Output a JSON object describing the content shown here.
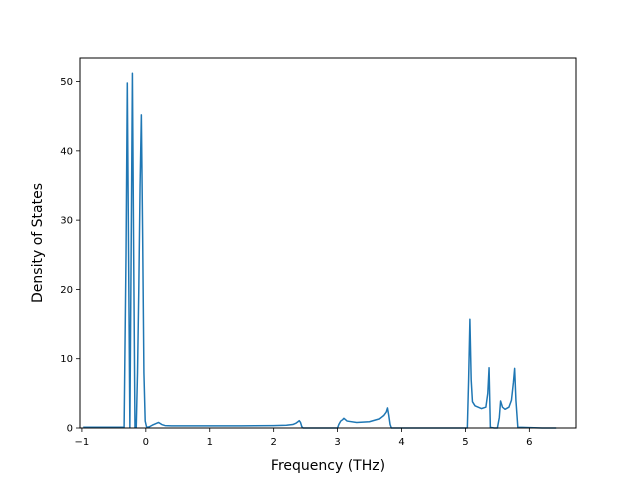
{
  "chart_data": {
    "type": "line",
    "title": "",
    "xlabel": "Frequency (THz)",
    "ylabel": "Density of States",
    "xlim": [
      -1.03,
      6.73
    ],
    "ylim": [
      0,
      53.4
    ],
    "x_ticks": [
      -1,
      0,
      1,
      2,
      3,
      4,
      5,
      6
    ],
    "y_ticks": [
      0,
      10,
      20,
      30,
      40,
      50
    ],
    "grid": false,
    "line_color": "#1f77b4",
    "series": [
      {
        "x": [
          -0.98,
          -0.5,
          -0.34,
          -0.31,
          -0.29,
          -0.27,
          -0.25,
          -0.23,
          -0.21,
          -0.19,
          -0.17,
          -0.15,
          -0.13,
          -0.11,
          -0.09,
          -0.07,
          -0.05,
          -0.03,
          -0.01,
          0.01,
          0.03,
          0.06,
          0.1,
          0.15,
          0.2,
          0.25,
          0.3,
          0.4,
          0.6,
          1.0,
          1.5,
          2.0,
          2.2,
          2.3,
          2.35,
          2.38,
          2.4,
          2.42,
          2.44,
          2.46,
          2.7,
          3.0,
          3.02,
          3.05,
          3.08,
          3.1,
          3.15,
          3.3,
          3.5,
          3.65,
          3.72,
          3.76,
          3.78,
          3.8,
          3.82,
          3.84,
          4.2,
          5.03,
          5.05,
          5.07,
          5.09,
          5.11,
          5.15,
          5.25,
          5.32,
          5.35,
          5.37,
          5.39,
          5.45,
          5.5,
          5.53,
          5.55,
          5.58,
          5.62,
          5.68,
          5.72,
          5.75,
          5.77,
          5.79,
          5.82,
          6.2,
          6.42
        ],
        "y": [
          0.1,
          0.1,
          0.1,
          25.0,
          49.8,
          25.0,
          0.1,
          25.0,
          51.2,
          25.0,
          0.1,
          0.1,
          8.0,
          20.0,
          35.0,
          45.2,
          28.0,
          8.0,
          1.0,
          0.2,
          0.1,
          0.2,
          0.4,
          0.6,
          0.8,
          0.5,
          0.35,
          0.3,
          0.3,
          0.3,
          0.3,
          0.35,
          0.4,
          0.5,
          0.7,
          0.9,
          1.05,
          0.8,
          0.2,
          0.0,
          0.0,
          0.0,
          0.5,
          1.0,
          1.2,
          1.4,
          1.0,
          0.8,
          0.9,
          1.3,
          1.8,
          2.3,
          2.9,
          1.8,
          0.5,
          0.0,
          0.0,
          0.0,
          7.0,
          15.7,
          7.0,
          3.8,
          3.2,
          2.8,
          3.0,
          5.0,
          8.7,
          0.1,
          0.0,
          0.0,
          1.5,
          3.9,
          3.0,
          2.7,
          3.0,
          4.0,
          6.5,
          8.6,
          4.0,
          0.1,
          0.0,
          0.0
        ]
      }
    ]
  }
}
